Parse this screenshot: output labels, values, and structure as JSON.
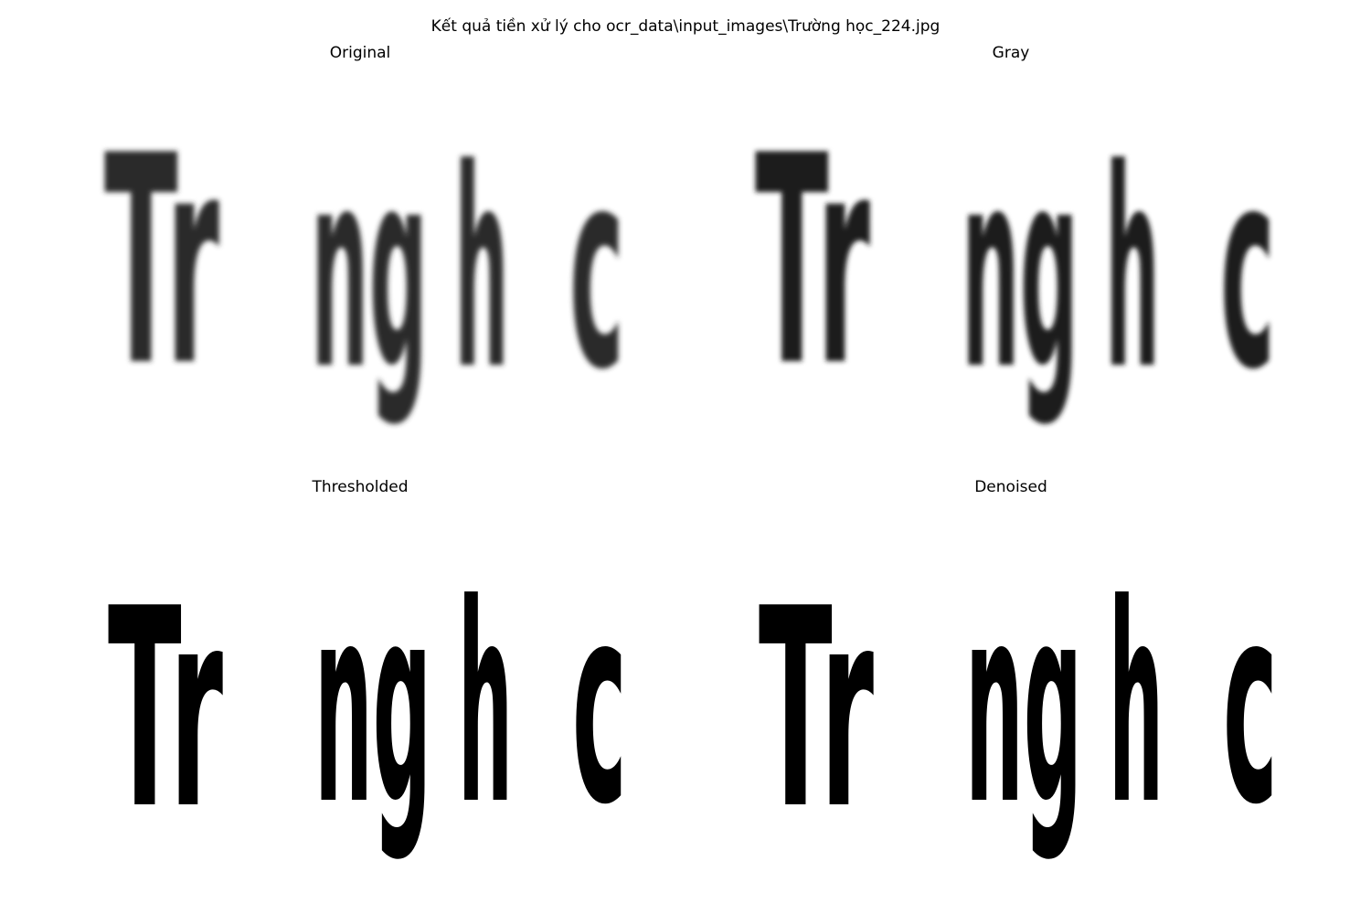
{
  "figure": {
    "suptitle": "Kết quả tiền xử lý cho ocr_data\\input_images\\Trường học_224.jpg"
  },
  "panels": [
    {
      "id": "original",
      "title": "Original",
      "style": "blurred-dark"
    },
    {
      "id": "gray",
      "title": "Gray",
      "style": "blurred-black"
    },
    {
      "id": "thresholded",
      "title": "Thresholded",
      "style": "binary-black"
    },
    {
      "id": "denoised",
      "title": "Denoised",
      "style": "binary-black"
    }
  ],
  "image_text": {
    "segments": [
      "Tr",
      "ng",
      "h",
      "c"
    ]
  },
  "colors": {
    "background": "#ffffff",
    "ink_original": "#2a2a2a",
    "ink_gray": "#1a1a1a",
    "ink_binary": "#000000"
  }
}
